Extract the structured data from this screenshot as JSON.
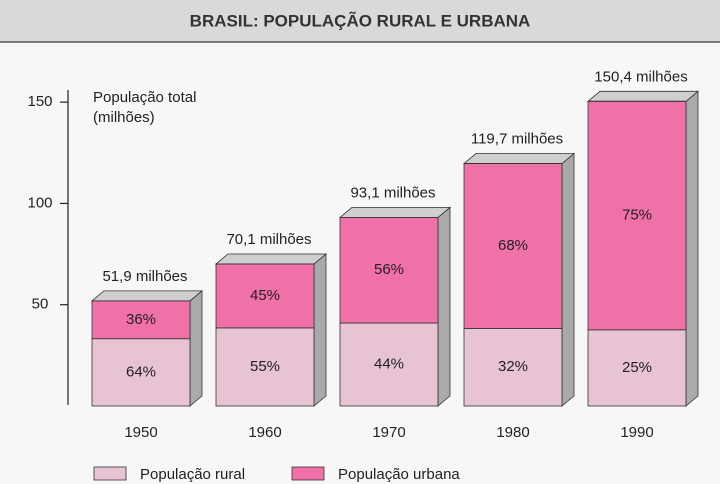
{
  "chart_data": {
    "type": "stacked_bar_3d",
    "title": "BRASIL: POPULAÇÃO RURAL E URBANA",
    "ylabel": [
      "População total",
      "(milhões)"
    ],
    "categories": [
      "1950",
      "1960",
      "1970",
      "1980",
      "1990"
    ],
    "values": [
      51.9,
      70.1,
      93.1,
      119.7,
      150.4
    ],
    "value_labels": [
      "51,9 milhões",
      "70,1 milhões",
      "93,1 milhões",
      "119,7 milhões",
      "150,4 milhões"
    ],
    "series": [
      {
        "name": "População rural",
        "color": "#e8c3d3",
        "values": [
          64,
          55,
          44,
          32,
          25
        ],
        "value_labels": [
          "64%",
          "55%",
          "44%",
          "32%",
          "25%"
        ]
      },
      {
        "name": "População urbana",
        "color": "#f070a8",
        "values": [
          36,
          45,
          56,
          68,
          75
        ],
        "value_labels": [
          "36%",
          "45%",
          "56%",
          "68%",
          "75%"
        ]
      }
    ],
    "ylim": [
      0,
      155
    ],
    "yticks": [
      50,
      100,
      150
    ]
  }
}
